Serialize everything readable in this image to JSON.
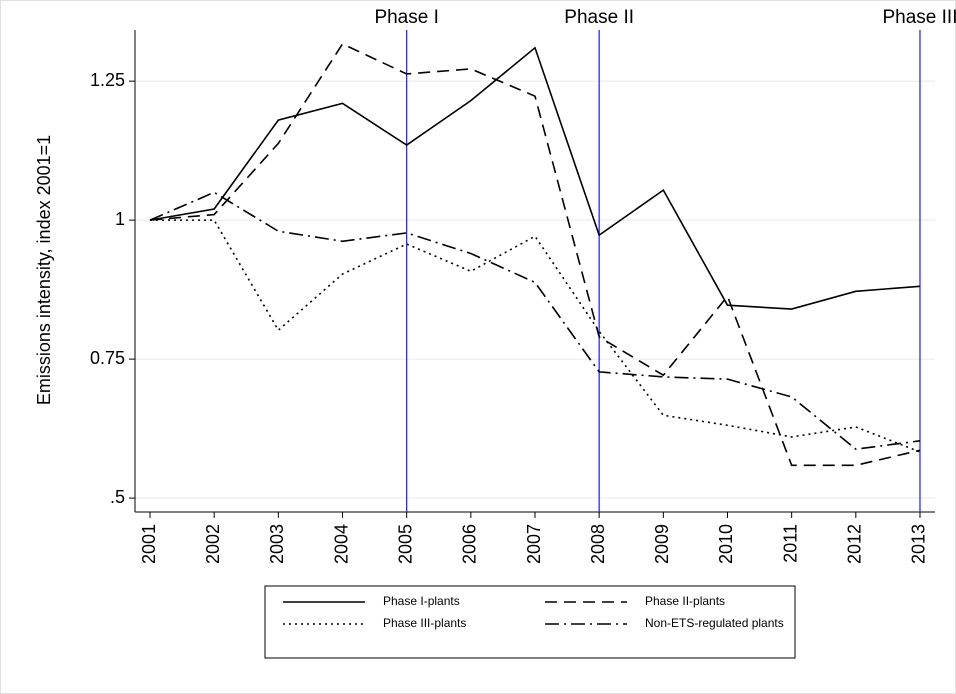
{
  "chart_data": {
    "type": "line",
    "y_label": "Emissions intensity, index 2001=1",
    "x": [
      2001,
      2002,
      2003,
      2004,
      2005,
      2006,
      2007,
      2008,
      2009,
      2010,
      2011,
      2012,
      2013
    ],
    "xlim": [
      2000.766,
      2013.234
    ],
    "xticks": [
      2001,
      2002,
      2003,
      2004,
      2005,
      2006,
      2007,
      2008,
      2009,
      2010,
      2011,
      2012,
      2013
    ],
    "ylim": [
      0.475,
      1.342
    ],
    "yticks": [
      {
        "value": 0.5,
        "label": ".5"
      },
      0.75,
      1,
      1.25
    ],
    "grid": true,
    "legend": "bottom",
    "series": [
      {
        "name": "Phase I-plants",
        "color": "#000000",
        "dash": "solid",
        "values": [
          1.0,
          1.02,
          1.18,
          1.21,
          1.135,
          1.215,
          1.31,
          0.973,
          1.054,
          0.847,
          0.84,
          0.872,
          0.881
        ]
      },
      {
        "name": "Phase II-plants",
        "color": "#000000",
        "dash": "dashed",
        "values": [
          1.0,
          1.01,
          1.138,
          1.317,
          1.263,
          1.272,
          1.223,
          0.79,
          0.721,
          0.863,
          0.559,
          0.559,
          0.586
        ]
      },
      {
        "name": "Phase III-plants",
        "color": "#000000",
        "dash": "dotted",
        "values": [
          1.0,
          1.0,
          0.802,
          0.903,
          0.957,
          0.908,
          0.971,
          0.8,
          0.649,
          0.631,
          0.61,
          0.628,
          0.583
        ]
      },
      {
        "name": "Non-ETS-regulated plants",
        "color": "#000000",
        "dash": "dashdot",
        "values": [
          1.0,
          1.05,
          0.98,
          0.962,
          0.977,
          0.94,
          0.888,
          0.727,
          0.718,
          0.714,
          0.682,
          0.588,
          0.603
        ]
      }
    ],
    "annotations": [
      {
        "x": 2005,
        "label": "Phase I",
        "color": "#1a1aff"
      },
      {
        "x": 2008,
        "label": "Phase II",
        "color": "#1a1aff"
      },
      {
        "x": 2013,
        "label": "Phase III",
        "color": "#1a1aff"
      }
    ]
  }
}
